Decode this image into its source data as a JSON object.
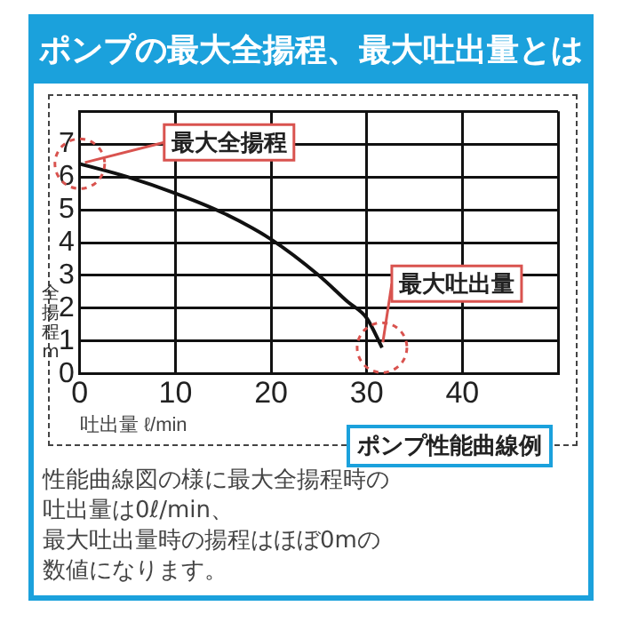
{
  "chart_data": {
    "type": "line",
    "title": "ポンプの最大全揚程、最大吐出量とは",
    "xlabel": "吐出量 ℓ/min",
    "ylabel": "全揚程m",
    "x": [
      0,
      5,
      10,
      15,
      20,
      25,
      28,
      30,
      31.6
    ],
    "series": [
      {
        "color": "#111111",
        "values": [
          6.4,
          6.0,
          5.5,
          4.9,
          4.1,
          3.0,
          2.2,
          1.7,
          0.8
        ]
      }
    ],
    "xlim": [
      0,
      50
    ],
    "xticks": [
      0,
      10,
      20,
      30,
      40,
      {
        "value": 50,
        "label": null
      }
    ],
    "ylim": [
      0,
      8
    ],
    "yticks": [
      0,
      1,
      2,
      3,
      4,
      5,
      6,
      7,
      {
        "value": 8,
        "label": null
      }
    ],
    "grid": true,
    "legend": false,
    "marker": "none",
    "line_style": "solid",
    "annotations": [
      "ポンプ性能曲線例",
      "性能曲線図の様に最大全揚程時の",
      "吐出量は0ℓ/min、",
      "最大吐出量時の揚程はほぼ0mの",
      "数値になります。",
      {
        "text": "最大全揚程",
        "x": 0,
        "y": 6.4
      },
      {
        "text": "最大吐出量",
        "x": 31.6,
        "y": 0.8
      }
    ]
  }
}
